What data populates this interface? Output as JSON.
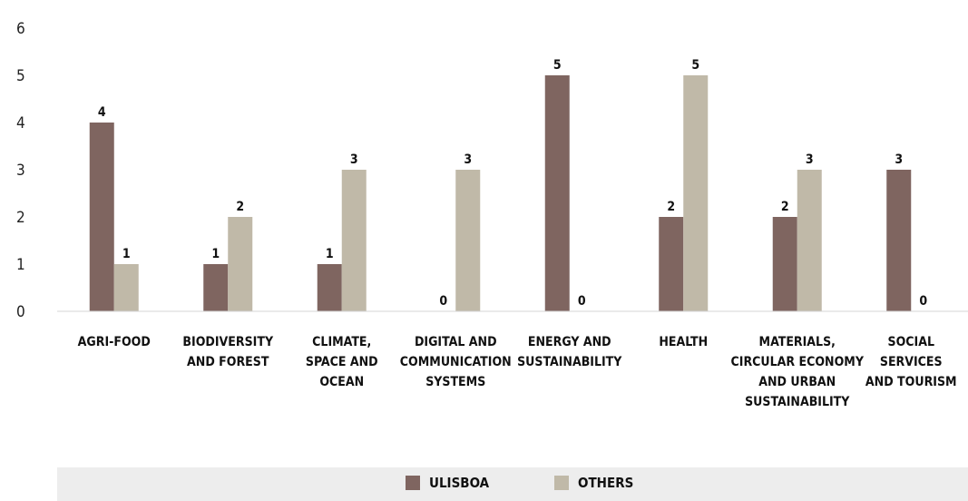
{
  "colors": {
    "ulisboa": "#7f6560",
    "others": "#c0b9a8",
    "axis": "#d4d4d4"
  },
  "chart_data": {
    "type": "bar",
    "title": "",
    "xlabel": "",
    "ylabel": "",
    "ylim": [
      0,
      6
    ],
    "yticks": [
      0,
      1,
      2,
      3,
      4,
      5,
      6
    ],
    "grid": false,
    "legend_position": "bottom",
    "categories": [
      "AGRI-FOOD",
      "BIODIVERSITY AND FOREST",
      "CLIMATE, SPACE AND OCEAN",
      "DIGITAL AND COMMUNICATION SYSTEMS",
      "ENERGY AND SUSTAINABILITY",
      "HEALTH",
      "MATERIALS, CIRCULAR ECONOMY AND URBAN SUSTAINABILITY",
      "SOCIAL SERVICES AND TOURISM"
    ],
    "category_lines": [
      [
        "AGRI-FOOD"
      ],
      [
        "BIODIVERSITY",
        "AND FOREST"
      ],
      [
        "CLIMATE,",
        "SPACE AND",
        "OCEAN"
      ],
      [
        "DIGITAL AND",
        "COMMUNICATION",
        "SYSTEMS"
      ],
      [
        "ENERGY AND",
        "SUSTAINABILITY"
      ],
      [
        "HEALTH"
      ],
      [
        "MATERIALS,",
        "CIRCULAR ECONOMY",
        "AND URBAN",
        "SUSTAINABILITY"
      ],
      [
        "SOCIAL",
        "SERVICES",
        "AND TOURISM"
      ]
    ],
    "series": [
      {
        "name": "ULISBOA",
        "values": [
          4,
          1,
          1,
          0,
          5,
          2,
          2,
          3
        ]
      },
      {
        "name": "OTHERS",
        "values": [
          1,
          2,
          3,
          3,
          0,
          5,
          3,
          0
        ]
      }
    ]
  }
}
